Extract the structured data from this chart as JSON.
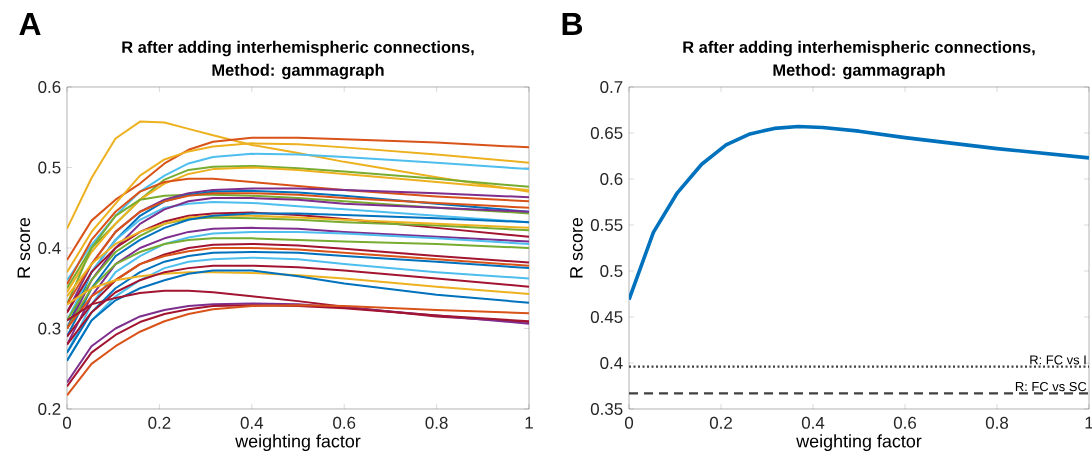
{
  "chart_data": [
    {
      "type": "line",
      "title": "R after adding interhemispheric connections,",
      "subtitle": "Method: gammagraph",
      "xlabel": "weighting factor",
      "ylabel": "R score",
      "annotations": [
        "A"
      ],
      "x": [
        0,
        0.053,
        0.105,
        0.158,
        0.211,
        0.263,
        0.316,
        0.4,
        0.5,
        0.6,
        0.8,
        1
      ],
      "xlim": [
        0,
        1
      ],
      "ylim": [
        0.2,
        0.6
      ],
      "xticks": [
        0,
        0.2,
        0.4,
        0.6,
        0.8,
        1
      ],
      "yticks": [
        0.2,
        0.3,
        0.4,
        0.5,
        0.6
      ],
      "grid": false,
      "marker": "none",
      "line_style": "solid",
      "series": [
        {
          "color": "#EDB120",
          "values": [
            0.424,
            0.487,
            0.536,
            0.557,
            0.556,
            0.548,
            0.54,
            0.528,
            0.518,
            0.507,
            0.488,
            0.47
          ]
        },
        {
          "color": "#D95319",
          "values": [
            0.385,
            0.434,
            0.46,
            0.48,
            0.505,
            0.522,
            0.532,
            0.537,
            0.537,
            0.535,
            0.531,
            0.525
          ]
        },
        {
          "color": "#EDB120",
          "values": [
            0.37,
            0.42,
            0.455,
            0.49,
            0.51,
            0.52,
            0.526,
            0.53,
            0.529,
            0.525,
            0.516,
            0.506
          ]
        },
        {
          "color": "#4DBEEE",
          "values": [
            0.36,
            0.404,
            0.44,
            0.47,
            0.49,
            0.505,
            0.513,
            0.517,
            0.516,
            0.513,
            0.506,
            0.498
          ]
        },
        {
          "color": "#77AC30",
          "values": [
            0.35,
            0.4,
            0.43,
            0.46,
            0.485,
            0.497,
            0.501,
            0.502,
            0.499,
            0.495,
            0.486,
            0.476
          ]
        },
        {
          "color": "#EDB120",
          "values": [
            0.345,
            0.395,
            0.43,
            0.46,
            0.48,
            0.492,
            0.498,
            0.5,
            0.497,
            0.492,
            0.482,
            0.472
          ]
        },
        {
          "color": "#D95319",
          "values": [
            0.355,
            0.41,
            0.445,
            0.47,
            0.482,
            0.486,
            0.486,
            0.482,
            0.477,
            0.472,
            0.464,
            0.458
          ]
        },
        {
          "color": "#77AC30",
          "values": [
            0.33,
            0.4,
            0.44,
            0.46,
            0.465,
            0.466,
            0.466,
            0.465,
            0.462,
            0.458,
            0.45,
            0.443
          ]
        },
        {
          "color": "#7E2F8E",
          "values": [
            0.32,
            0.38,
            0.42,
            0.445,
            0.46,
            0.468,
            0.472,
            0.474,
            0.474,
            0.472,
            0.468,
            0.463
          ]
        },
        {
          "color": "#0072BD",
          "values": [
            0.3,
            0.37,
            0.41,
            0.44,
            0.458,
            0.466,
            0.47,
            0.471,
            0.469,
            0.465,
            0.455,
            0.445
          ]
        },
        {
          "color": "#D95319",
          "values": [
            0.33,
            0.38,
            0.42,
            0.445,
            0.458,
            0.465,
            0.468,
            0.468,
            0.466,
            0.462,
            0.456,
            0.45
          ]
        },
        {
          "color": "#4DBEEE",
          "values": [
            0.31,
            0.37,
            0.41,
            0.435,
            0.45,
            0.455,
            0.457,
            0.456,
            0.452,
            0.448,
            0.44,
            0.432
          ]
        },
        {
          "color": "#7E2F8E",
          "values": [
            0.3,
            0.36,
            0.4,
            0.43,
            0.448,
            0.458,
            0.462,
            0.462,
            0.46,
            0.455,
            0.45,
            0.445
          ]
        },
        {
          "color": "#A2142F",
          "values": [
            0.32,
            0.37,
            0.4,
            0.42,
            0.433,
            0.44,
            0.443,
            0.444,
            0.441,
            0.436,
            0.425,
            0.414
          ]
        },
        {
          "color": "#77AC30",
          "values": [
            0.31,
            0.36,
            0.395,
            0.415,
            0.43,
            0.436,
            0.438,
            0.437,
            0.435,
            0.432,
            0.428,
            0.422
          ]
        },
        {
          "color": "#EDB120",
          "values": [
            0.34,
            0.38,
            0.405,
            0.42,
            0.43,
            0.438,
            0.44,
            0.44,
            0.438,
            0.435,
            0.43,
            0.425
          ]
        },
        {
          "color": "#0072BD",
          "values": [
            0.29,
            0.35,
            0.39,
            0.41,
            0.425,
            0.435,
            0.44,
            0.443,
            0.443,
            0.441,
            0.437,
            0.432
          ]
        },
        {
          "color": "#7E2F8E",
          "values": [
            0.28,
            0.34,
            0.38,
            0.4,
            0.412,
            0.42,
            0.424,
            0.425,
            0.424,
            0.42,
            0.414,
            0.408
          ]
        },
        {
          "color": "#4DBEEE",
          "values": [
            0.27,
            0.33,
            0.37,
            0.39,
            0.405,
            0.413,
            0.418,
            0.42,
            0.42,
            0.418,
            0.412,
            0.405
          ]
        },
        {
          "color": "#77AC30",
          "values": [
            0.3,
            0.35,
            0.38,
            0.395,
            0.405,
            0.41,
            0.412,
            0.412,
            0.41,
            0.408,
            0.405,
            0.4
          ]
        },
        {
          "color": "#A2142F",
          "values": [
            0.29,
            0.33,
            0.36,
            0.38,
            0.392,
            0.4,
            0.404,
            0.405,
            0.403,
            0.399,
            0.39,
            0.382
          ]
        },
        {
          "color": "#D95319",
          "values": [
            0.3,
            0.34,
            0.36,
            0.38,
            0.39,
            0.396,
            0.4,
            0.4,
            0.398,
            0.394,
            0.386,
            0.378
          ]
        },
        {
          "color": "#0072BD",
          "values": [
            0.27,
            0.32,
            0.35,
            0.37,
            0.383,
            0.39,
            0.394,
            0.395,
            0.394,
            0.39,
            0.383,
            0.375
          ]
        },
        {
          "color": "#4DBEEE",
          "values": [
            0.26,
            0.31,
            0.34,
            0.36,
            0.375,
            0.383,
            0.386,
            0.388,
            0.386,
            0.38,
            0.37,
            0.362
          ]
        },
        {
          "color": "#EDB120",
          "values": [
            0.33,
            0.35,
            0.36,
            0.365,
            0.368,
            0.37,
            0.37,
            0.369,
            0.366,
            0.362,
            0.352,
            0.343
          ]
        },
        {
          "color": "#A2142F",
          "values": [
            0.28,
            0.32,
            0.345,
            0.36,
            0.37,
            0.375,
            0.378,
            0.378,
            0.376,
            0.372,
            0.362,
            0.352
          ]
        },
        {
          "color": "#0072BD",
          "values": [
            0.26,
            0.31,
            0.335,
            0.35,
            0.36,
            0.368,
            0.372,
            0.372,
            0.365,
            0.356,
            0.342,
            0.332
          ]
        },
        {
          "color": "#A2142F",
          "values": [
            0.31,
            0.33,
            0.338,
            0.344,
            0.347,
            0.347,
            0.345,
            0.34,
            0.334,
            0.327,
            0.315,
            0.308
          ]
        },
        {
          "color": "#7E2F8E",
          "values": [
            0.233,
            0.278,
            0.3,
            0.315,
            0.323,
            0.328,
            0.33,
            0.331,
            0.33,
            0.326,
            0.316,
            0.306
          ]
        },
        {
          "color": "#A2142F",
          "values": [
            0.228,
            0.27,
            0.292,
            0.308,
            0.318,
            0.324,
            0.328,
            0.329,
            0.328,
            0.325,
            0.316,
            0.309
          ]
        },
        {
          "color": "#D95319",
          "values": [
            0.217,
            0.256,
            0.278,
            0.296,
            0.309,
            0.318,
            0.324,
            0.328,
            0.329,
            0.328,
            0.323,
            0.319
          ]
        }
      ]
    },
    {
      "type": "line",
      "title": "R after adding interhemispheric connections,",
      "subtitle": "Method: gammagraph",
      "xlabel": "weighting factor",
      "ylabel": "R score",
      "annotations": [
        "B"
      ],
      "x": [
        0,
        0.053,
        0.105,
        0.158,
        0.211,
        0.263,
        0.316,
        0.368,
        0.421,
        0.5,
        0.6,
        0.7,
        0.8,
        0.9,
        1
      ],
      "xlim": [
        0,
        1
      ],
      "ylim": [
        0.35,
        0.7
      ],
      "xticks": [
        0,
        0.2,
        0.4,
        0.6,
        0.8,
        1
      ],
      "yticks": [
        0.35,
        0.4,
        0.45,
        0.5,
        0.55,
        0.6,
        0.65,
        0.7
      ],
      "grid": false,
      "marker": "none",
      "line_style": "solid",
      "series": [
        {
          "color": "#0072BD",
          "values": [
            0.469,
            0.542,
            0.585,
            0.616,
            0.637,
            0.649,
            0.655,
            0.657,
            0.656,
            0.652,
            0.645,
            0.639,
            0.633,
            0.628,
            0.623
          ]
        }
      ],
      "ref_lines": [
        {
          "axis": "y",
          "value": 0.396,
          "label": "R: FC vs I",
          "color": "#404040",
          "line_style": "dotted"
        },
        {
          "axis": "y",
          "value": 0.367,
          "label": "R: FC vs SC",
          "color": "#404040",
          "line_style": "dashed"
        }
      ]
    }
  ]
}
